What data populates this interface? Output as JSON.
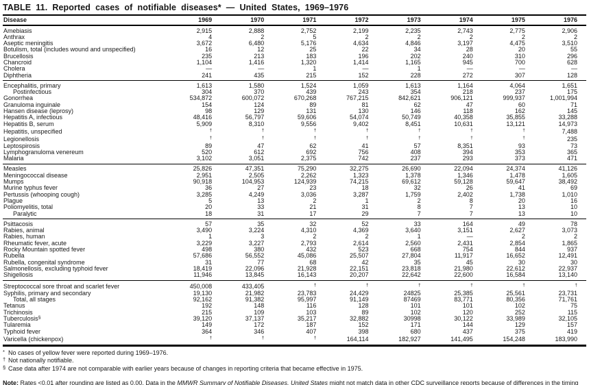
{
  "table": {
    "title": "TABLE 11. Reported cases of notifiable diseases* — United States, 1969–1976",
    "columns": [
      "Disease",
      "1969",
      "1970",
      "1971",
      "1972",
      "1973",
      "1974",
      "1975",
      "1976"
    ],
    "sections": [
      {
        "rows": [
          {
            "label": "Amebiasis",
            "values": [
              "2,915",
              "2,888",
              "2,752",
              "2,199",
              "2,235",
              "2,743",
              "2,775",
              "2,906"
            ]
          },
          {
            "label": "Anthrax",
            "values": [
              "4",
              "2",
              "5",
              "2",
              "2",
              "2",
              "2",
              "2"
            ]
          },
          {
            "label": "Aseptic meningitis",
            "values": [
              "3,672",
              "6,480",
              "5,176",
              "4,634",
              "4,846",
              "3,197",
              "4,475",
              "3,510"
            ]
          },
          {
            "label": "Botulism, total (includes wound and unspecified)",
            "values": [
              "16",
              "12",
              "25",
              "22",
              "34",
              "28",
              "20",
              "55"
            ]
          },
          {
            "label": "Brucellosis",
            "values": [
              "235",
              "213",
              "183",
              "196",
              "202",
              "240",
              "310",
              "296"
            ]
          },
          {
            "label": "Chancroid",
            "values": [
              "1,104",
              "1,416",
              "1,320",
              "1,414",
              "1,165",
              "945",
              "700",
              "628"
            ]
          },
          {
            "label": "Cholera",
            "values": [
              "—",
              "—",
              "1",
              "—",
              "1",
              "—",
              "—",
              "—"
            ]
          },
          {
            "label": "Diphtheria",
            "values": [
              "241",
              "435",
              "215",
              "152",
              "228",
              "272",
              "307",
              "128"
            ]
          }
        ]
      },
      {
        "rows": [
          {
            "label": "Encephalitis, primary",
            "values": [
              "1,613",
              "1,580",
              "1,524",
              "1,059",
              "1,613",
              "1,164",
              "4,064",
              "1,651"
            ]
          },
          {
            "label": "Postinfectious",
            "indent": true,
            "values": [
              "304",
              "370",
              "439",
              "243",
              "354",
              "218",
              "237",
              "175"
            ]
          },
          {
            "label": "Gonorrhea",
            "values": [
              "534,872",
              "600,072",
              "670,268",
              "767,215",
              "842,621",
              "906,121",
              "999,937",
              "1,001,994"
            ]
          },
          {
            "label": "Granuloma inguinale",
            "values": [
              "154",
              "124",
              "89",
              "81",
              "62",
              "47",
              "60",
              "71"
            ]
          },
          {
            "label": "Hansen disease (leprosy)",
            "values": [
              "98",
              "129",
              "131",
              "130",
              "146",
              "118",
              "162",
              "145"
            ]
          },
          {
            "label": "Hepatitis A, infectious",
            "values": [
              "48,416",
              "56,797",
              "59,606",
              "54,074",
              "50,749",
              "40,358",
              "35,855",
              "33,288"
            ]
          },
          {
            "label": "Hepatitis B, serum",
            "values": [
              "5,909",
              "8,310",
              "9,556",
              "9,402",
              "8,451",
              "10,631",
              "13,121",
              "14,973"
            ]
          },
          {
            "label": "Hepatitis, unspecified",
            "values": [
              "†",
              "†",
              "†",
              "†",
              "†",
              "†",
              "†",
              "7,488"
            ]
          },
          {
            "label": "Legionellosis",
            "values": [
              "†",
              "†",
              "†",
              "†",
              "†",
              "†",
              "†",
              "235"
            ]
          },
          {
            "label": "Leptospirosis",
            "values": [
              "89",
              "47",
              "62",
              "41",
              "57",
              "8,351",
              "93",
              "73"
            ]
          },
          {
            "label": "Lymphogranuloma venereum",
            "values": [
              "520",
              "612",
              "692",
              "756",
              "408",
              "394",
              "353",
              "365"
            ]
          },
          {
            "label": "Malaria",
            "values": [
              "3,102",
              "3,051",
              "2,375",
              "742",
              "237",
              "293",
              "373",
              "471"
            ]
          }
        ]
      },
      {
        "rows": [
          {
            "label": "Measles",
            "values": [
              "25,826",
              "47,351",
              "75,290",
              "32,275",
              "26,690",
              "22,094",
              "24,374",
              "41,126"
            ]
          },
          {
            "label": "Meningococcal disease",
            "values": [
              "2,951",
              "2,505",
              "2,262",
              "1,323",
              "1,378",
              "1,346",
              "1,478",
              "1,605"
            ]
          },
          {
            "label": "Mumps",
            "values": [
              "90,918",
              "104,953",
              "124,939",
              "74,215",
              "69,612",
              "59,128",
              "59,647",
              "38,492"
            ]
          },
          {
            "label": "Murine typhus fever",
            "values": [
              "36",
              "27",
              "23",
              "18",
              "32",
              "26",
              "41",
              "69"
            ]
          },
          {
            "label": "Pertussis (whooping cough)",
            "values": [
              "3,285",
              "4,249",
              "3,036",
              "3,287",
              "1,759",
              "2,402",
              "1,738",
              "1,010"
            ]
          },
          {
            "label": "Plague",
            "values": [
              "5",
              "13",
              "2",
              "1",
              "2",
              "8",
              "20",
              "16"
            ]
          },
          {
            "label": "Poliomyelitis, total",
            "values": [
              "20",
              "33",
              "21",
              "31",
              "8",
              "7",
              "13",
              "10"
            ]
          },
          {
            "label": "Paralytic",
            "indent": true,
            "values": [
              "18",
              "31",
              "17",
              "29",
              "7",
              "7",
              "13",
              "10"
            ]
          }
        ]
      },
      {
        "rows": [
          {
            "label": "Psittacosis",
            "values": [
              "57",
              "35",
              "32",
              "52",
              "33",
              "164",
              "49",
              "78"
            ]
          },
          {
            "label": "Rabies, animal",
            "values": [
              "3,490",
              "3,224",
              "4,310",
              "4,369",
              "3,640",
              "3,151",
              "2,627",
              "3,073"
            ]
          },
          {
            "label": "Rabies, human",
            "values": [
              "1",
              "3",
              "2",
              "2",
              "1",
              "—",
              "2",
              "2"
            ]
          },
          {
            "label": "Rheumatic fever, acute",
            "values": [
              "3,229",
              "3,227",
              "2,793",
              "2,614",
              "2,560",
              "2,431",
              "2,854",
              "1,865"
            ]
          },
          {
            "label": "Rocky Mountain spotted fever",
            "values": [
              "498",
              "380",
              "432",
              "523",
              "668",
              "754",
              "844",
              "937"
            ]
          },
          {
            "label": "Rubella",
            "values": [
              "57,686",
              "56,552",
              "45,086",
              "25,507",
              "27,804",
              "11,917",
              "16,652",
              "12,491"
            ]
          },
          {
            "label": "Rubella, congenital syndrome",
            "values": [
              "31",
              "77",
              "68",
              "42",
              "35",
              "45",
              "30",
              "30"
            ]
          },
          {
            "label": "Salmonellosis, excluding typhoid fever",
            "values": [
              "18,419",
              "22,096",
              "21,928",
              "22,151",
              "23,818",
              "21,980",
              "22,612",
              "22,937"
            ]
          },
          {
            "label": "Shigellosis",
            "values": [
              "11,946",
              "13,845",
              "16,143",
              "20,207",
              "22,642",
              "22,600",
              "16,584",
              "13,140"
            ]
          }
        ]
      },
      {
        "rows": [
          {
            "label": "Streptococcal sore throat and scarlet fever",
            "values": [
              "450,008",
              "433,405",
              "†",
              "†",
              "†",
              "†",
              "†",
              "†"
            ]
          },
          {
            "label": "Syphilis, primary and secondary",
            "values": [
              "19,130",
              "21,982",
              "23,783",
              "24,429",
              "24825",
              "25,385",
              "25,561",
              "23,731"
            ]
          },
          {
            "label": "Total, all stages",
            "indent": true,
            "values": [
              "92,162",
              "91,382",
              "95,997",
              "91,149",
              "87469",
              "83,771",
              "80,356",
              "71,761"
            ]
          },
          {
            "label": "Tetanus",
            "values": [
              "192",
              "148",
              "116",
              "128",
              "101",
              "101",
              "102",
              "75"
            ]
          },
          {
            "label": "Trichinosis",
            "values": [
              "215",
              "109",
              "103",
              "89",
              "102",
              "120",
              "252",
              "115"
            ]
          },
          {
            "label": "Tuberculosis",
            "sup": "§",
            "values": [
              "39,120",
              "37,137",
              "35,217",
              "32,882",
              "30998",
              "30,122",
              "33,989",
              "32,105"
            ]
          },
          {
            "label": "Tularemia",
            "values": [
              "149",
              "172",
              "187",
              "152",
              "171",
              "144",
              "129",
              "157"
            ]
          },
          {
            "label": "Typhoid fever",
            "values": [
              "364",
              "346",
              "407",
              "398",
              "680",
              "437",
              "375",
              "419"
            ]
          },
          {
            "label": "Varicella (chickenpox)",
            "values": [
              "†",
              "†",
              "†",
              "164,114",
              "182,927",
              "141,495",
              "154,248",
              "183,990"
            ]
          }
        ]
      }
    ]
  },
  "footnotes": [
    {
      "marker": "*",
      "text": "No cases of yellow fever were reported during 1969–1976."
    },
    {
      "marker": "†",
      "text": "Not nationally notifiable."
    },
    {
      "marker": "§",
      "text": "Case data after 1974 are not comparable with earlier years because of changes in reporting criteria that became effective in 1975."
    }
  ],
  "note": {
    "label": "Note:",
    "pre": " Rates <0.01 after rounding are listed as 0.00. Data in the ",
    "italic": "MMWR Summary of Notifiable Diseases, United States",
    "post": " might not match data in other CDC surveillance reports because of differences in the timing of reports, the source of the data, and the use of different case definitions."
  }
}
